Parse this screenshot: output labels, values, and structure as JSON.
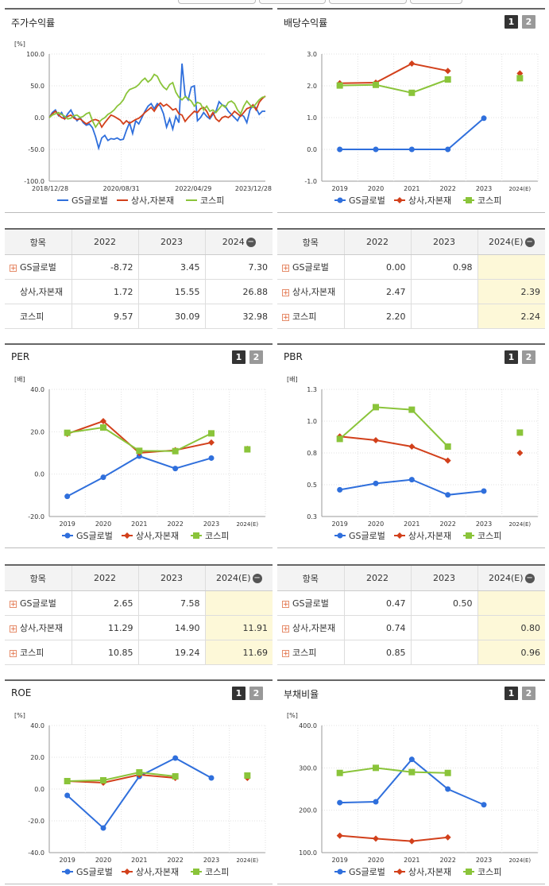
{
  "legend": {
    "gs": "GS글로벌",
    "sector": "상사,자본재",
    "kospi": "코스피"
  },
  "colors": {
    "gs": "#2f6fdc",
    "sector": "#d2401b",
    "kospi": "#8ac43a"
  },
  "panels": {
    "stock": {
      "title": "주가수익률",
      "unit": "[%]"
    },
    "div": {
      "title": "배당수익률",
      "unit": "",
      "btn1": "1",
      "btn2": "2"
    },
    "per": {
      "title": "PER",
      "unit": "[배]",
      "btn1": "1",
      "btn2": "2"
    },
    "pbr": {
      "title": "PBR",
      "unit": "[배]",
      "btn1": "1",
      "btn2": "2"
    },
    "roe": {
      "title": "ROE",
      "unit": "[%]",
      "btn1": "1",
      "btn2": "2"
    },
    "debt": {
      "title": "부채비율",
      "unit": "[%]",
      "btn1": "1",
      "btn2": "2"
    }
  },
  "chart_data": [
    {
      "id": "stock",
      "type": "line",
      "ylim": [
        -100,
        100
      ],
      "yticks": [
        "100.0",
        "50.0",
        "0.0",
        "-50.0",
        "-100.0"
      ],
      "xticks": [
        "2018/12/28",
        "2020/08/31",
        "2022/04/29",
        "2023/12/28"
      ],
      "series": [
        {
          "key": "gs",
          "name": "GS글로벌",
          "values": [
            0,
            8,
            12,
            3,
            8,
            -2,
            6,
            12,
            2,
            -5,
            0,
            -8,
            -12,
            -10,
            -16,
            -30,
            -48,
            -32,
            -28,
            -36,
            -33,
            -34,
            -32,
            -35,
            -34,
            -20,
            -8,
            -25,
            -5,
            -10,
            0,
            10,
            18,
            22,
            14,
            22,
            18,
            6,
            -15,
            -2,
            -18,
            2,
            -8,
            85,
            35,
            28,
            48,
            50,
            -5,
            0,
            8,
            2,
            -2,
            5,
            10,
            25,
            20,
            18,
            10,
            5,
            0,
            -5,
            5,
            2,
            -8,
            12,
            20,
            15,
            5,
            10,
            10
          ]
        },
        {
          "key": "sector",
          "name": "상사,자본재",
          "values": [
            0,
            6,
            10,
            4,
            0,
            -2,
            2,
            4,
            -1,
            -3,
            -2,
            -6,
            -10,
            -7,
            -4,
            -3,
            -5,
            -15,
            -8,
            -2,
            4,
            2,
            -1,
            -4,
            -10,
            -5,
            -9,
            -6,
            -3,
            -1,
            3,
            8,
            12,
            16,
            10,
            18,
            23,
            18,
            21,
            17,
            12,
            14,
            6,
            4,
            -6,
            0,
            5,
            10,
            8,
            14,
            16,
            10,
            0,
            8,
            -2,
            -6,
            0,
            2,
            0,
            4,
            10,
            6,
            2,
            8,
            14,
            16,
            20,
            12,
            24,
            30,
            34
          ]
        },
        {
          "key": "kospi",
          "name": "코스피",
          "values": [
            0,
            4,
            6,
            8,
            5,
            2,
            -2,
            -1,
            3,
            4,
            0,
            2,
            6,
            8,
            -5,
            -15,
            -8,
            -3,
            0,
            5,
            8,
            12,
            18,
            22,
            28,
            38,
            44,
            46,
            48,
            52,
            58,
            62,
            56,
            60,
            68,
            65,
            55,
            48,
            44,
            52,
            55,
            40,
            32,
            28,
            33,
            30,
            26,
            18,
            24,
            22,
            12,
            18,
            10,
            12,
            8,
            14,
            20,
            16,
            24,
            26,
            22,
            12,
            6,
            18,
            26,
            20,
            16,
            22,
            28,
            32,
            33
          ]
        }
      ]
    },
    {
      "id": "div",
      "type": "line",
      "ylim": [
        -1,
        3
      ],
      "yticks": [
        "3.0",
        "2.0",
        "1.0",
        "0.0",
        "-1.0"
      ],
      "categories": [
        "2019",
        "2020",
        "2021",
        "2022",
        "2023",
        "2024(E)"
      ],
      "series": [
        {
          "key": "gs",
          "name": "GS글로벌",
          "values": [
            0.0,
            0.0,
            0.0,
            0.0,
            0.98,
            null
          ]
        },
        {
          "key": "sector",
          "name": "상사,자본재",
          "values": [
            2.08,
            2.1,
            2.7,
            2.47,
            null,
            2.39
          ]
        },
        {
          "key": "kospi",
          "name": "코스피",
          "values": [
            2.01,
            2.03,
            1.78,
            2.2,
            null,
            2.24
          ]
        }
      ]
    },
    {
      "id": "per",
      "type": "line",
      "ylim": [
        -20,
        40
      ],
      "yticks": [
        "40.0",
        "20.0",
        "0.0",
        "-20.0"
      ],
      "categories": [
        "2019",
        "2020",
        "2021",
        "2022",
        "2023",
        "2024(E)"
      ],
      "series": [
        {
          "key": "gs",
          "name": "GS글로벌",
          "values": [
            -10.5,
            -1.5,
            8.5,
            2.65,
            7.58,
            null
          ]
        },
        {
          "key": "sector",
          "name": "상사,자본재",
          "values": [
            19.0,
            25.0,
            10.0,
            11.29,
            14.9,
            11.91
          ]
        },
        {
          "key": "kospi",
          "name": "코스피",
          "values": [
            19.5,
            22.0,
            11.0,
            10.85,
            19.24,
            11.69
          ]
        }
      ]
    },
    {
      "id": "pbr",
      "type": "line",
      "ylim": [
        0.3,
        1.3
      ],
      "yticks": [
        "1.3",
        "1.0",
        "0.8",
        "0.5",
        "0.3"
      ],
      "categories": [
        "2019",
        "2020",
        "2021",
        "2022",
        "2023",
        "2024(E)"
      ],
      "series": [
        {
          "key": "gs",
          "name": "GS글로벌",
          "values": [
            0.51,
            0.56,
            0.59,
            0.47,
            0.5,
            null
          ]
        },
        {
          "key": "sector",
          "name": "상사,자본재",
          "values": [
            0.93,
            0.9,
            0.85,
            0.74,
            null,
            0.8
          ]
        },
        {
          "key": "kospi",
          "name": "코스피",
          "values": [
            0.91,
            1.16,
            1.14,
            0.85,
            null,
            0.96
          ]
        }
      ]
    },
    {
      "id": "roe",
      "type": "line",
      "ylim": [
        -40,
        40
      ],
      "yticks": [
        "40.0",
        "20.0",
        "0.0",
        "-20.0",
        "-40.0"
      ],
      "categories": [
        "2019",
        "2020",
        "2021",
        "2022",
        "2023",
        "2024(E)"
      ],
      "series": [
        {
          "key": "gs",
          "name": "GS글로벌",
          "values": [
            -4.0,
            -24.5,
            8.0,
            19.5,
            7.0,
            null
          ]
        },
        {
          "key": "sector",
          "name": "상사,자본재",
          "values": [
            5.0,
            4.0,
            9.0,
            7.0,
            null,
            7.0
          ]
        },
        {
          "key": "kospi",
          "name": "코스피",
          "values": [
            5.0,
            5.5,
            10.5,
            8.0,
            null,
            8.5
          ]
        }
      ]
    },
    {
      "id": "debt",
      "type": "line",
      "ylim": [
        100,
        400
      ],
      "yticks": [
        "400.0",
        "300.0",
        "200.0",
        "100.0"
      ],
      "categories": [
        "2019",
        "2020",
        "2021",
        "2022",
        "2023",
        "2024(E)"
      ],
      "series": [
        {
          "key": "gs",
          "name": "GS글로벌",
          "values": [
            218,
            220,
            320,
            250,
            213,
            null
          ]
        },
        {
          "key": "sector",
          "name": "상사,자본재",
          "values": [
            140,
            133,
            127,
            136,
            null,
            null
          ]
        },
        {
          "key": "kospi",
          "name": "코스피",
          "values": [
            288,
            300,
            290,
            288,
            null,
            null
          ]
        }
      ]
    }
  ],
  "tables": {
    "stock": {
      "header": [
        "항목",
        "2022",
        "2023",
        "2024"
      ],
      "rows": [
        {
          "label": "GS글로벌",
          "plus": true,
          "values": [
            "-8.72",
            "3.45",
            "7.30"
          ]
        },
        {
          "label": "상사,자본재",
          "plus": false,
          "values": [
            "1.72",
            "15.55",
            "26.88"
          ]
        },
        {
          "label": "코스피",
          "plus": false,
          "values": [
            "9.57",
            "30.09",
            "32.98"
          ]
        }
      ]
    },
    "div": {
      "header": [
        "항목",
        "2022",
        "2023",
        "2024(E)"
      ],
      "rows": [
        {
          "label": "GS글로벌",
          "plus": true,
          "values": [
            "0.00",
            "0.98",
            ""
          ]
        },
        {
          "label": "상사,자본재",
          "plus": true,
          "values": [
            "2.47",
            "",
            "2.39"
          ]
        },
        {
          "label": "코스피",
          "plus": true,
          "values": [
            "2.20",
            "",
            "2.24"
          ]
        }
      ]
    },
    "per": {
      "header": [
        "항목",
        "2022",
        "2023",
        "2024(E)"
      ],
      "rows": [
        {
          "label": "GS글로벌",
          "plus": true,
          "values": [
            "2.65",
            "7.58",
            ""
          ]
        },
        {
          "label": "상사,자본재",
          "plus": true,
          "values": [
            "11.29",
            "14.90",
            "11.91"
          ]
        },
        {
          "label": "코스피",
          "plus": true,
          "values": [
            "10.85",
            "19.24",
            "11.69"
          ]
        }
      ]
    },
    "pbr": {
      "header": [
        "항목",
        "2022",
        "2023",
        "2024(E)"
      ],
      "rows": [
        {
          "label": "GS글로벌",
          "plus": true,
          "values": [
            "0.47",
            "0.50",
            ""
          ]
        },
        {
          "label": "상사,자본재",
          "plus": true,
          "values": [
            "0.74",
            "",
            "0.80"
          ]
        },
        {
          "label": "코스피",
          "plus": true,
          "values": [
            "0.85",
            "",
            "0.96"
          ]
        }
      ]
    }
  }
}
